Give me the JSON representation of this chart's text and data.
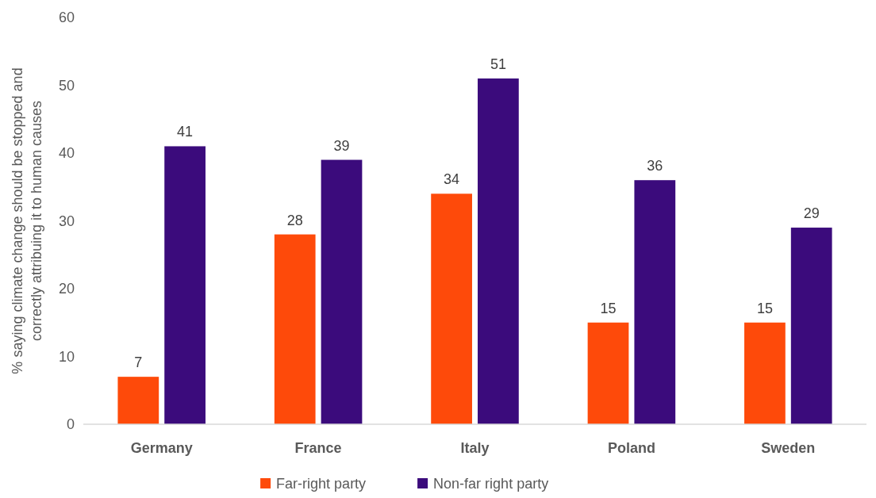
{
  "chart_data": {
    "type": "bar",
    "ylabel": "% saying climate change should be stopped and correctly attribuing it to human causes",
    "categories": [
      "Germany",
      "France",
      "Italy",
      "Poland",
      "Sweden"
    ],
    "series": [
      {
        "name": "Far-right party",
        "color": "#fe4a0a",
        "values": [
          7,
          28,
          34,
          15,
          15
        ]
      },
      {
        "name": "Non-far right party",
        "color": "#3b0b7c",
        "values": [
          41,
          39,
          51,
          36,
          29
        ]
      }
    ],
    "ylim": [
      0,
      60
    ],
    "yticks": [
      0,
      10,
      20,
      30,
      40,
      50,
      60
    ],
    "data_labels": true,
    "legend": "bottom",
    "grid": false
  }
}
